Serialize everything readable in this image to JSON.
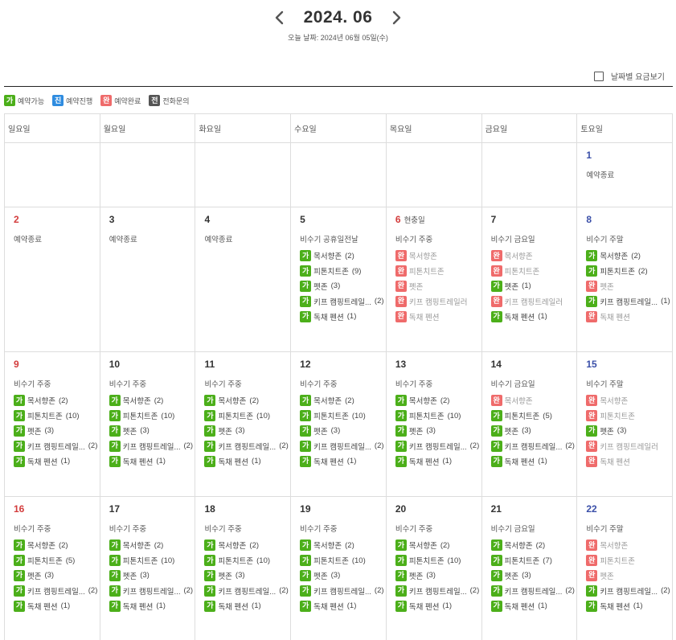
{
  "header": {
    "month_title": "2024. 06",
    "today_text": "오늘 날짜: 2024년 06월 05일(수)",
    "prev_icon": "chevron-left-icon",
    "next_icon": "chevron-right-icon"
  },
  "price_toggle": {
    "label": "날짜별 요금보기",
    "checked": false
  },
  "legend": [
    {
      "badge": "가",
      "label": "예약가능",
      "type": "avail",
      "color": "#4caf1a"
    },
    {
      "badge": "진",
      "label": "예약진행",
      "type": "prog",
      "color": "#2f8ce0"
    },
    {
      "badge": "완",
      "label": "예약완료",
      "type": "done",
      "color": "#ef6b6b"
    },
    {
      "badge": "전",
      "label": "전화문의",
      "type": "call",
      "color": "#555555"
    }
  ],
  "weekdays": [
    "일요일",
    "월요일",
    "화요일",
    "수요일",
    "목요일",
    "금요일",
    "토요일"
  ],
  "weeks": [
    [
      null,
      null,
      null,
      null,
      null,
      null,
      {
        "day": "1",
        "season": "예약종료",
        "items": []
      }
    ],
    [
      {
        "day": "2",
        "season": "예약종료",
        "items": []
      },
      {
        "day": "3",
        "season": "예약종료",
        "items": []
      },
      {
        "day": "4",
        "season": "예약종료",
        "items": []
      },
      {
        "day": "5",
        "season": "비수기 공휴일전날",
        "items": [
          {
            "status": "가",
            "name": "목서향존",
            "count": "(2)"
          },
          {
            "status": "가",
            "name": "피톤치트존",
            "count": "(9)"
          },
          {
            "status": "가",
            "name": "펫존",
            "count": "(3)"
          },
          {
            "status": "가",
            "name": "키프 캠핑트레일...",
            "count": "(2)"
          },
          {
            "status": "가",
            "name": "독채 펜션",
            "count": "(1)"
          }
        ]
      },
      {
        "day": "6",
        "holiday": "현충일",
        "season": "비수기 주중",
        "items": [
          {
            "status": "완",
            "name": "목서향존",
            "count": ""
          },
          {
            "status": "완",
            "name": "피톤치트존",
            "count": ""
          },
          {
            "status": "완",
            "name": "펫존",
            "count": ""
          },
          {
            "status": "완",
            "name": "키프 캠핑트레일러",
            "count": ""
          },
          {
            "status": "완",
            "name": "독채 펜션",
            "count": ""
          }
        ]
      },
      {
        "day": "7",
        "season": "비수기 금요일",
        "items": [
          {
            "status": "완",
            "name": "목서향존",
            "count": ""
          },
          {
            "status": "완",
            "name": "피톤치트존",
            "count": ""
          },
          {
            "status": "가",
            "name": "펫존",
            "count": "(1)"
          },
          {
            "status": "완",
            "name": "키프 캠핑트레일러",
            "count": ""
          },
          {
            "status": "가",
            "name": "독채 펜션",
            "count": "(1)"
          }
        ]
      },
      {
        "day": "8",
        "season": "비수기 주말",
        "items": [
          {
            "status": "가",
            "name": "목서향존",
            "count": "(2)"
          },
          {
            "status": "가",
            "name": "피톤치트존",
            "count": "(2)"
          },
          {
            "status": "완",
            "name": "펫존",
            "count": ""
          },
          {
            "status": "가",
            "name": "키프 캠핑트레일...",
            "count": "(1)"
          },
          {
            "status": "완",
            "name": "독채 펜션",
            "count": ""
          }
        ]
      }
    ],
    [
      {
        "day": "9",
        "season": "비수기 주중",
        "items": [
          {
            "status": "가",
            "name": "목서향존",
            "count": "(2)"
          },
          {
            "status": "가",
            "name": "피톤치트존",
            "count": "(10)"
          },
          {
            "status": "가",
            "name": "펫존",
            "count": "(3)"
          },
          {
            "status": "가",
            "name": "키프 캠핑트레일...",
            "count": "(2)"
          },
          {
            "status": "가",
            "name": "독채 펜션",
            "count": "(1)"
          }
        ]
      },
      {
        "day": "10",
        "season": "비수기 주중",
        "items": [
          {
            "status": "가",
            "name": "목서향존",
            "count": "(2)"
          },
          {
            "status": "가",
            "name": "피톤치트존",
            "count": "(10)"
          },
          {
            "status": "가",
            "name": "펫존",
            "count": "(3)"
          },
          {
            "status": "가",
            "name": "키프 캠핑트레일...",
            "count": "(2)"
          },
          {
            "status": "가",
            "name": "독채 펜션",
            "count": "(1)"
          }
        ]
      },
      {
        "day": "11",
        "season": "비수기 주중",
        "items": [
          {
            "status": "가",
            "name": "목서향존",
            "count": "(2)"
          },
          {
            "status": "가",
            "name": "피톤치트존",
            "count": "(10)"
          },
          {
            "status": "가",
            "name": "펫존",
            "count": "(3)"
          },
          {
            "status": "가",
            "name": "키프 캠핑트레일...",
            "count": "(2)"
          },
          {
            "status": "가",
            "name": "독채 펜션",
            "count": "(1)"
          }
        ]
      },
      {
        "day": "12",
        "season": "비수기 주중",
        "items": [
          {
            "status": "가",
            "name": "목서향존",
            "count": "(2)"
          },
          {
            "status": "가",
            "name": "피톤치트존",
            "count": "(10)"
          },
          {
            "status": "가",
            "name": "펫존",
            "count": "(3)"
          },
          {
            "status": "가",
            "name": "키프 캠핑트레일...",
            "count": "(2)"
          },
          {
            "status": "가",
            "name": "독채 펜션",
            "count": "(1)"
          }
        ]
      },
      {
        "day": "13",
        "season": "비수기 주중",
        "items": [
          {
            "status": "가",
            "name": "목서향존",
            "count": "(2)"
          },
          {
            "status": "가",
            "name": "피톤치트존",
            "count": "(10)"
          },
          {
            "status": "가",
            "name": "펫존",
            "count": "(3)"
          },
          {
            "status": "가",
            "name": "키프 캠핑트레일...",
            "count": "(2)"
          },
          {
            "status": "가",
            "name": "독채 펜션",
            "count": "(1)"
          }
        ]
      },
      {
        "day": "14",
        "season": "비수기 금요일",
        "items": [
          {
            "status": "완",
            "name": "목서향존",
            "count": ""
          },
          {
            "status": "가",
            "name": "피톤치트존",
            "count": "(5)"
          },
          {
            "status": "가",
            "name": "펫존",
            "count": "(3)"
          },
          {
            "status": "가",
            "name": "키프 캠핑트레일...",
            "count": "(2)"
          },
          {
            "status": "가",
            "name": "독채 펜션",
            "count": "(1)"
          }
        ]
      },
      {
        "day": "15",
        "season": "비수기 주말",
        "items": [
          {
            "status": "완",
            "name": "목서향존",
            "count": ""
          },
          {
            "status": "완",
            "name": "피톤치트존",
            "count": ""
          },
          {
            "status": "가",
            "name": "펫존",
            "count": "(3)"
          },
          {
            "status": "완",
            "name": "키프 캠핑트레일러",
            "count": ""
          },
          {
            "status": "완",
            "name": "독채 펜션",
            "count": ""
          }
        ]
      }
    ],
    [
      {
        "day": "16",
        "season": "비수기 주중",
        "items": [
          {
            "status": "가",
            "name": "목서향존",
            "count": "(2)"
          },
          {
            "status": "가",
            "name": "피톤치트존",
            "count": "(5)"
          },
          {
            "status": "가",
            "name": "펫존",
            "count": "(3)"
          },
          {
            "status": "가",
            "name": "키프 캠핑트레일...",
            "count": "(2)"
          },
          {
            "status": "가",
            "name": "독채 펜션",
            "count": "(1)"
          }
        ]
      },
      {
        "day": "17",
        "season": "비수기 주중",
        "items": [
          {
            "status": "가",
            "name": "목서향존",
            "count": "(2)"
          },
          {
            "status": "가",
            "name": "피톤치트존",
            "count": "(10)"
          },
          {
            "status": "가",
            "name": "펫존",
            "count": "(3)"
          },
          {
            "status": "가",
            "name": "키프 캠핑트레일...",
            "count": "(2)"
          },
          {
            "status": "가",
            "name": "독채 펜션",
            "count": "(1)"
          }
        ]
      },
      {
        "day": "18",
        "season": "비수기 주중",
        "items": [
          {
            "status": "가",
            "name": "목서향존",
            "count": "(2)"
          },
          {
            "status": "가",
            "name": "피톤치트존",
            "count": "(10)"
          },
          {
            "status": "가",
            "name": "펫존",
            "count": "(3)"
          },
          {
            "status": "가",
            "name": "키프 캠핑트레일...",
            "count": "(2)"
          },
          {
            "status": "가",
            "name": "독채 펜션",
            "count": "(1)"
          }
        ]
      },
      {
        "day": "19",
        "season": "비수기 주중",
        "items": [
          {
            "status": "가",
            "name": "목서향존",
            "count": "(2)"
          },
          {
            "status": "가",
            "name": "피톤치트존",
            "count": "(10)"
          },
          {
            "status": "가",
            "name": "펫존",
            "count": "(3)"
          },
          {
            "status": "가",
            "name": "키프 캠핑트레일...",
            "count": "(2)"
          },
          {
            "status": "가",
            "name": "독채 펜션",
            "count": "(1)"
          }
        ]
      },
      {
        "day": "20",
        "season": "비수기 주중",
        "items": [
          {
            "status": "가",
            "name": "목서향존",
            "count": "(2)"
          },
          {
            "status": "가",
            "name": "피톤치트존",
            "count": "(10)"
          },
          {
            "status": "가",
            "name": "펫존",
            "count": "(3)"
          },
          {
            "status": "가",
            "name": "키프 캠핑트레일...",
            "count": "(2)"
          },
          {
            "status": "가",
            "name": "독채 펜션",
            "count": "(1)"
          }
        ]
      },
      {
        "day": "21",
        "season": "비수기 금요일",
        "items": [
          {
            "status": "가",
            "name": "목서향존",
            "count": "(2)"
          },
          {
            "status": "가",
            "name": "피톤치트존",
            "count": "(7)"
          },
          {
            "status": "가",
            "name": "펫존",
            "count": "(3)"
          },
          {
            "status": "가",
            "name": "키프 캠핑트레일...",
            "count": "(2)"
          },
          {
            "status": "가",
            "name": "독채 펜션",
            "count": "(1)"
          }
        ]
      },
      {
        "day": "22",
        "season": "비수기 주말",
        "items": [
          {
            "status": "완",
            "name": "목서향존",
            "count": ""
          },
          {
            "status": "완",
            "name": "피톤치트존",
            "count": ""
          },
          {
            "status": "완",
            "name": "펫존",
            "count": ""
          },
          {
            "status": "가",
            "name": "키프 캠핑트레일...",
            "count": "(2)"
          },
          {
            "status": "가",
            "name": "독채 펜션",
            "count": "(1)"
          }
        ]
      }
    ]
  ]
}
